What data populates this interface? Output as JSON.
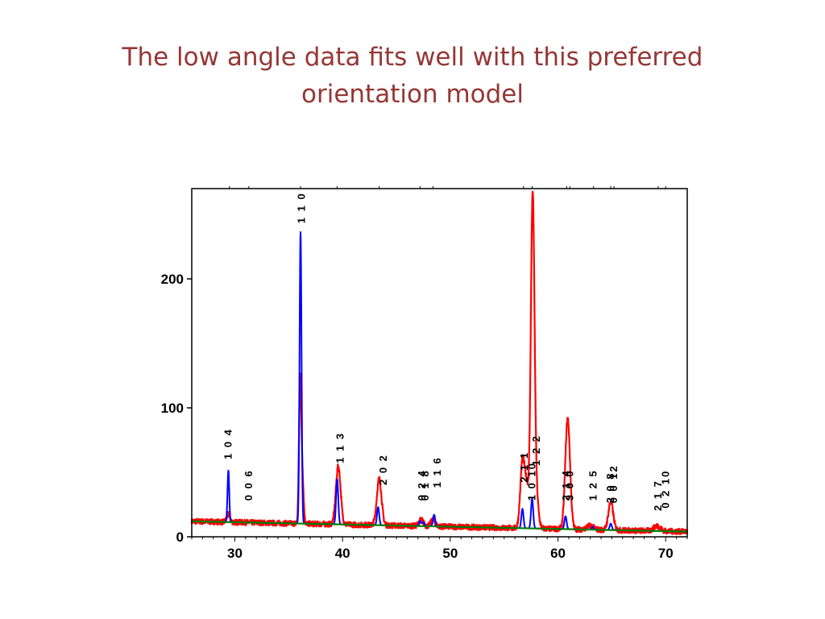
{
  "slide": {
    "title_line1": "The low angle data fits well with this preferred",
    "title_line2": "orientation model"
  },
  "colors": {
    "title": "#953735",
    "observed": "#ff0000",
    "calculated": "#0000ff",
    "background_fit": "#008000",
    "axes": "#000000"
  },
  "chart_data": {
    "type": "line",
    "title": "",
    "xlabel": "",
    "ylabel": "",
    "xlim": [
      26,
      72
    ],
    "ylim": [
      0,
      270
    ],
    "x_ticks": [
      30,
      40,
      50,
      60,
      70
    ],
    "y_ticks": [
      0,
      100,
      200
    ],
    "x_tick_labels": [
      "30",
      "40",
      "50",
      "60",
      "70"
    ],
    "y_tick_labels": [
      "0",
      "100",
      "200"
    ],
    "grid": false,
    "background": {
      "x": [
        26,
        72
      ],
      "y": [
        12,
        4
      ]
    },
    "series": [
      {
        "key": "observed",
        "noise": 2.2,
        "peaks": [
          {
            "x": 29.4,
            "h": 6,
            "w": 0.15
          },
          {
            "x": 36.05,
            "h": 105,
            "w": 0.1
          },
          {
            "x": 36.25,
            "h": 40,
            "w": 0.12
          },
          {
            "x": 39.6,
            "h": 45,
            "w": 0.22
          },
          {
            "x": 43.4,
            "h": 36,
            "w": 0.22
          },
          {
            "x": 47.3,
            "h": 5,
            "w": 0.2
          },
          {
            "x": 48.4,
            "h": 5,
            "w": 0.2
          },
          {
            "x": 56.7,
            "h": 50,
            "w": 0.2
          },
          {
            "x": 57.1,
            "h": 30,
            "w": 0.2
          },
          {
            "x": 57.65,
            "h": 256,
            "w": 0.17
          },
          {
            "x": 58.0,
            "h": 22,
            "w": 0.2
          },
          {
            "x": 60.9,
            "h": 86,
            "w": 0.22
          },
          {
            "x": 63.0,
            "h": 3,
            "w": 0.3
          },
          {
            "x": 64.9,
            "h": 22,
            "w": 0.22
          },
          {
            "x": 69.2,
            "h": 4,
            "w": 0.3
          }
        ]
      },
      {
        "key": "calculated",
        "noise": 0,
        "peaks": [
          {
            "x": 29.4,
            "h": 40,
            "w": 0.08
          },
          {
            "x": 36.1,
            "h": 226,
            "w": 0.09
          },
          {
            "x": 39.5,
            "h": 35,
            "w": 0.1
          },
          {
            "x": 43.3,
            "h": 14,
            "w": 0.1
          },
          {
            "x": 47.2,
            "h": 4,
            "w": 0.1
          },
          {
            "x": 47.5,
            "h": 3,
            "w": 0.1
          },
          {
            "x": 48.5,
            "h": 9,
            "w": 0.1
          },
          {
            "x": 56.7,
            "h": 15,
            "w": 0.1
          },
          {
            "x": 57.6,
            "h": 23,
            "w": 0.1
          },
          {
            "x": 60.7,
            "h": 10,
            "w": 0.1
          },
          {
            "x": 63.2,
            "h": 2,
            "w": 0.1
          },
          {
            "x": 64.9,
            "h": 5,
            "w": 0.1
          }
        ]
      }
    ],
    "annotations": [
      {
        "text": "1 0 4",
        "x": 29.4,
        "y_base": 60
      },
      {
        "text": "0 0 6",
        "x": 31.3,
        "y_base": 28
      },
      {
        "text": "1 1 0",
        "x": 36.2,
        "y_base": 243
      },
      {
        "text": "1 1 3",
        "x": 39.8,
        "y_base": 57
      },
      {
        "text": "2 0 2",
        "x": 43.8,
        "y_base": 40
      },
      {
        "text": "0 2 4",
        "x": 47.4,
        "y_base": 28
      },
      {
        "text": "0 1 8",
        "x": 47.7,
        "y_base": 28
      },
      {
        "text": "1 1 6",
        "x": 48.8,
        "y_base": 38
      },
      {
        "text": "2 1 1",
        "x": 56.9,
        "y_base": 42
      },
      {
        "text": "1 0 10",
        "x": 57.6,
        "y_base": 28
      },
      {
        "text": "1 2 2",
        "x": 58.0,
        "y_base": 55
      },
      {
        "text": "2 1 4",
        "x": 60.8,
        "y_base": 28
      },
      {
        "text": "3 0 0",
        "x": 61.1,
        "y_base": 28
      },
      {
        "text": "1 2 5",
        "x": 63.3,
        "y_base": 28
      },
      {
        "text": "2 0 8",
        "x": 64.9,
        "y_base": 26
      },
      {
        "text": "0 0 12",
        "x": 65.2,
        "y_base": 26
      },
      {
        "text": "2 1 7",
        "x": 69.3,
        "y_base": 20
      },
      {
        "text": "0 2 10",
        "x": 70.0,
        "y_base": 22
      }
    ],
    "top_ticks_x": [
      29.5,
      31.3,
      36.1,
      39.5,
      43.4,
      47.2,
      48.4,
      56.8,
      57.6,
      60.8,
      61.1,
      63.3,
      64.9,
      65.2,
      69.3,
      70.0
    ]
  }
}
